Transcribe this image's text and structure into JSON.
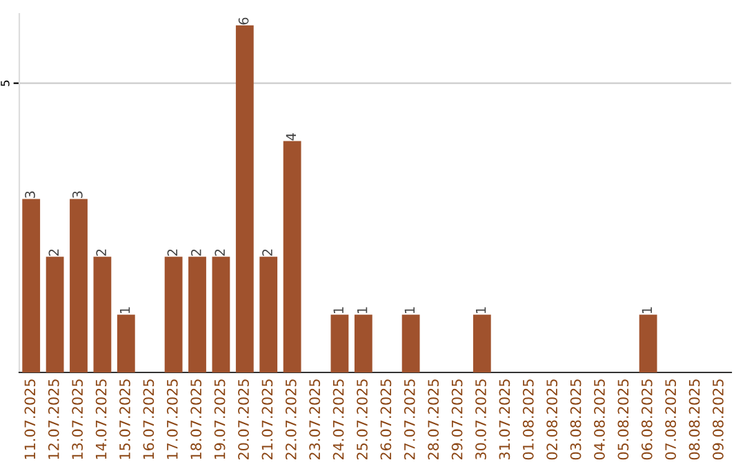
{
  "chart_data": {
    "type": "bar",
    "categories": [
      "11.07.2025",
      "12.07.2025",
      "13.07.2025",
      "14.07.2025",
      "15.07.2025",
      "16.07.2025",
      "17.07.2025",
      "18.07.2025",
      "19.07.2025",
      "20.07.2025",
      "21.07.2025",
      "22.07.2025",
      "23.07.2025",
      "24.07.2025",
      "25.07.2025",
      "26.07.2025",
      "27.07.2025",
      "28.07.2025",
      "29.07.2025",
      "30.07.2025",
      "31.07.2025",
      "01.08.2025",
      "02.08.2025",
      "03.08.2025",
      "04.08.2025",
      "05.08.2025",
      "06.08.2025",
      "07.08.2025",
      "08.08.2025",
      "09.08.2025"
    ],
    "values": [
      3,
      2,
      3,
      2,
      1,
      0,
      2,
      2,
      2,
      6,
      2,
      4,
      0,
      1,
      1,
      0,
      1,
      0,
      0,
      1,
      0,
      0,
      0,
      0,
      0,
      0,
      1,
      0,
      0,
      0
    ],
    "value_labels": [
      "3",
      "2",
      "3",
      "2",
      "1",
      null,
      "2",
      "2",
      "2",
      "6",
      "2",
      "4",
      null,
      "1",
      "1",
      null,
      "1",
      null,
      null,
      "1",
      null,
      null,
      null,
      null,
      null,
      null,
      "1",
      null,
      null,
      null
    ],
    "color": "#a0522d",
    "ylim": [
      0,
      6.2
    ],
    "yticks": [
      5
    ],
    "grid": "y"
  }
}
